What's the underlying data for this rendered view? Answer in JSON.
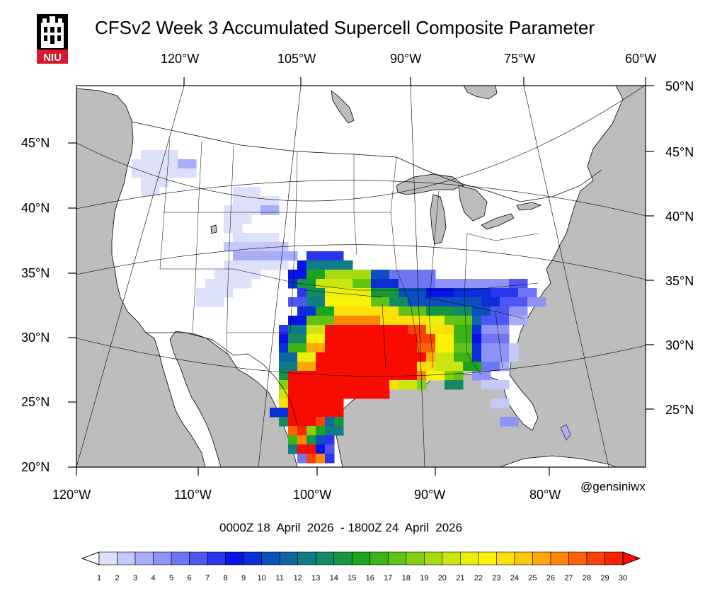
{
  "title": "CFSv2 Week 3 Accumulated Supercell Composite Parameter",
  "logo_text": "NIU",
  "credit": "@gensiniwx",
  "date_range": "0000Z 18  April  2026  - 1800Z 24  April  2026",
  "axes": {
    "bottom_lon_labels": [
      "120°W",
      "110°W",
      "100°W",
      "90°W",
      "80°W"
    ],
    "left_lat_labels": [
      "45°N",
      "40°N",
      "35°N",
      "30°N",
      "25°N",
      "20°N"
    ],
    "top_lon_labels": [
      "120°W",
      "105°W",
      "90°W",
      "75°W",
      "60°W"
    ],
    "right_lat_labels": [
      "50°N",
      "45°N",
      "40°N",
      "35°N",
      "30°N",
      "25°N"
    ]
  },
  "colorbar": {
    "labels": [
      "1",
      "2",
      "3",
      "4",
      "5",
      "6",
      "7",
      "8",
      "9",
      "10",
      "11",
      "12",
      "13",
      "14",
      "15",
      "16",
      "17",
      "18",
      "19",
      "20",
      "21",
      "22",
      "23",
      "24",
      "25",
      "26",
      "27",
      "28",
      "29",
      "30"
    ],
    "colors": [
      "#dde0fb",
      "#c4c8fa",
      "#a9aef8",
      "#8e94f6",
      "#6f76f4",
      "#4f57f2",
      "#2c35ee",
      "#0a12ea",
      "#0b2fd6",
      "#0c4fbe",
      "#0e66a2",
      "#107c86",
      "#138a62",
      "#16973f",
      "#1aa51d",
      "#3cb416",
      "#62c215",
      "#86cf14",
      "#a8da12",
      "#cae510",
      "#eaf00c",
      "#fbf20a",
      "#fde00a",
      "#fdc609",
      "#fda708",
      "#fd8607",
      "#fc6406",
      "#fb4205",
      "#f92204"
    ],
    "under_color": "#ffffff",
    "over_color": "#f80c02"
  },
  "colors": {
    "land": "#ffffff",
    "ocean": "#bdbdbd",
    "lakes": "#bdbdbd",
    "borders": "#000000",
    "logo_red": "#d7182a"
  }
}
